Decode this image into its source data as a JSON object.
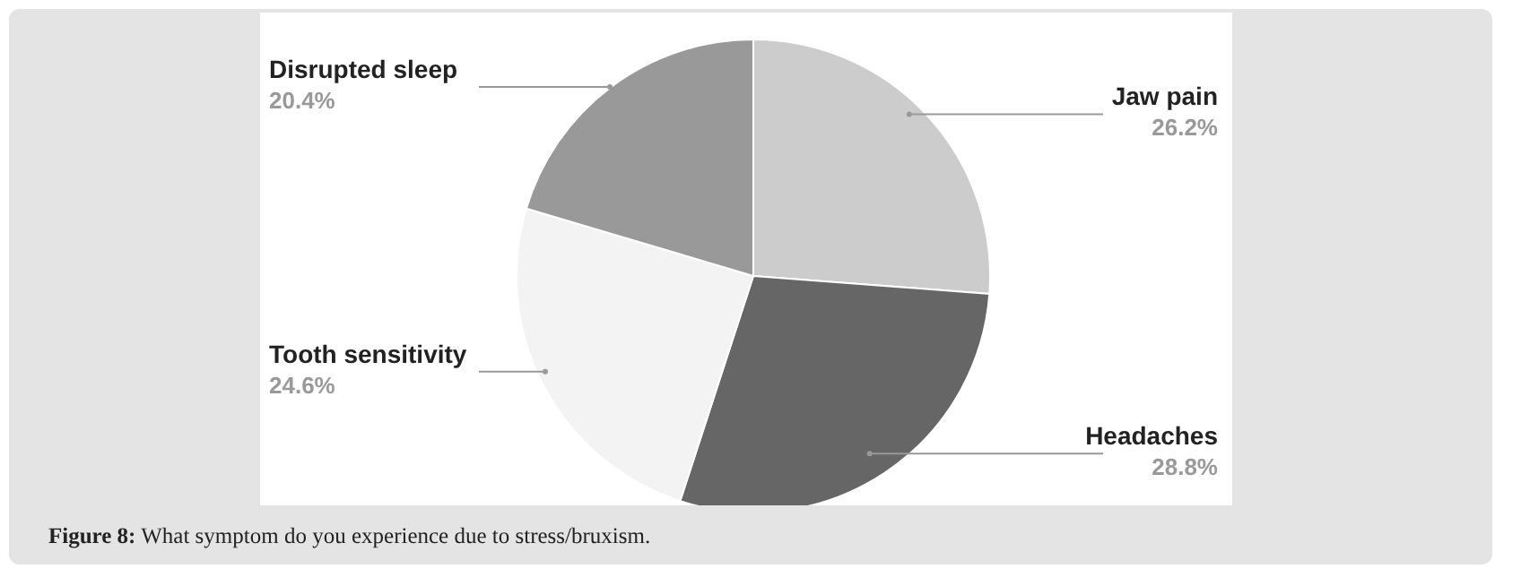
{
  "chart_data": {
    "type": "pie",
    "categories": [
      "Jaw pain",
      "Headaches",
      "Tooth sensitivity",
      "Disrupted sleep"
    ],
    "values": [
      26.2,
      28.8,
      24.6,
      20.4
    ],
    "value_labels": [
      "26.2%",
      "28.8%",
      "24.6%",
      "20.4%"
    ],
    "colors": [
      "#cccccc",
      "#666666",
      "#f3f3f3",
      "#999999"
    ],
    "annotations": [
      "Figure 8: What symptom do you experience due to stress/bruxism."
    ]
  }
}
